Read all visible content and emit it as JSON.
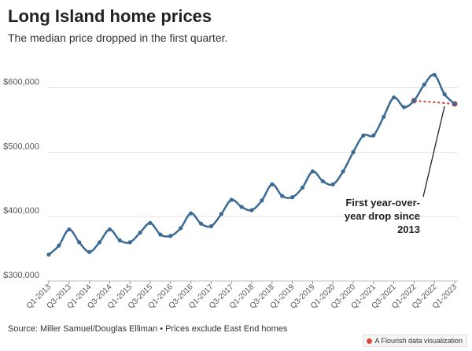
{
  "header": {
    "title": "Long Island home prices",
    "subtitle": "The median price dropped in the first quarter."
  },
  "footer": {
    "source": "Source: Miller Samuel/Douglas Elliman • Prices exclude East End homes",
    "credit": "A Flourish data visualization"
  },
  "colors": {
    "line": "#3b6a94",
    "trend": "#c8443a",
    "grid": "#e2e2e2",
    "annotation": "#222222"
  },
  "chart_data": {
    "type": "line",
    "title": "Long Island home prices",
    "xlabel": "",
    "ylabel": "",
    "ylim": [
      300000,
      630000
    ],
    "yticks": [
      300000,
      400000,
      500000,
      600000
    ],
    "ytick_labels": [
      "$300,000",
      "$400,000",
      "$500,000",
      "$600,000"
    ],
    "grid": true,
    "x": [
      "Q1-2013",
      "Q2-2013",
      "Q3-2013",
      "Q4-2013",
      "Q1-2014",
      "Q2-2014",
      "Q3-2014",
      "Q4-2014",
      "Q1-2015",
      "Q2-2015",
      "Q3-2015",
      "Q4-2015",
      "Q1-2016",
      "Q2-2016",
      "Q3-2016",
      "Q4-2016",
      "Q1-2017",
      "Q2-2017",
      "Q3-2017",
      "Q4-2017",
      "Q1-2018",
      "Q2-2018",
      "Q3-2018",
      "Q4-2018",
      "Q1-2019",
      "Q2-2019",
      "Q3-2019",
      "Q4-2019",
      "Q1-2020",
      "Q2-2020",
      "Q3-2020",
      "Q4-2020",
      "Q1-2021",
      "Q2-2021",
      "Q3-2021",
      "Q4-2021",
      "Q1-2022",
      "Q2-2022",
      "Q3-2022",
      "Q4-2022",
      "Q1-2023"
    ],
    "xtick_labels": [
      "Q1-2013",
      "Q3-2013",
      "Q1-2014",
      "Q3-2014",
      "Q1-2015",
      "Q3-2015",
      "Q1-2016",
      "Q3-2016",
      "Q1-2017",
      "Q3-2017",
      "Q1-2018",
      "Q3-2018",
      "Q1-2019",
      "Q3-2019",
      "Q1-2020",
      "Q3-2020",
      "Q1-2021",
      "Q3-2021",
      "Q1-2022",
      "Q3-2022",
      "Q1-2023"
    ],
    "series": [
      {
        "name": "Median price",
        "values": [
          341000,
          355000,
          380000,
          360000,
          345000,
          360000,
          380000,
          363000,
          360000,
          375000,
          390000,
          372000,
          370000,
          382000,
          405000,
          389000,
          385000,
          404000,
          426000,
          415000,
          410000,
          425000,
          450000,
          432000,
          430000,
          445000,
          470000,
          455000,
          450000,
          470000,
          500000,
          526000,
          526000,
          555000,
          585000,
          570000,
          580000,
          605000,
          620000,
          590000,
          575000
        ]
      }
    ],
    "trend_line": {
      "from": "Q1-2022",
      "to": "Q1-2023",
      "from_value": 580000,
      "to_value": 575000
    },
    "annotation": {
      "lines": [
        "First year-over-",
        "year drop since",
        "2013"
      ],
      "points_to": "Q4-2022"
    }
  }
}
